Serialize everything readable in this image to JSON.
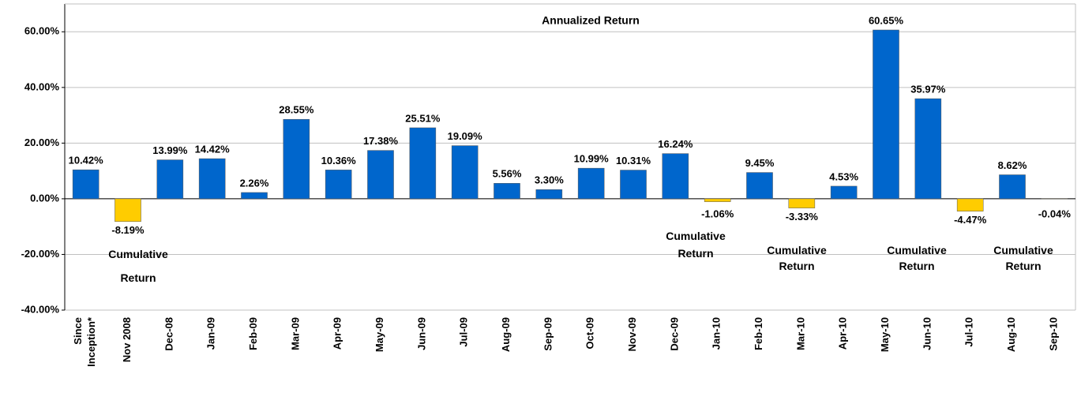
{
  "chart_data": {
    "type": "bar",
    "title": "Annualized Return",
    "annotations": [
      "Cumulative Return",
      "Cumulative Return",
      "Cumulative Return",
      "Cumulative Return",
      "Cumulative Return"
    ],
    "categories": [
      "Since\nInception*",
      "Nov 2008",
      "Dec-08",
      "Jan-09",
      "Feb-09",
      "Mar-09",
      "Apr-09",
      "May-09",
      "Jun-09",
      "Jul-09",
      "Aug-09",
      "Sep-09",
      "Oct-09",
      "Nov-09",
      "Dec-09",
      "Jan-10",
      "Feb-10",
      "Mar-10",
      "Apr-10",
      "May-10",
      "Jun-10",
      "Jul-10",
      "Aug-10",
      "Sep-10"
    ],
    "values": [
      10.42,
      -8.19,
      13.99,
      14.42,
      2.26,
      28.55,
      10.36,
      17.38,
      25.51,
      19.09,
      5.56,
      3.3,
      10.99,
      10.31,
      16.24,
      -1.06,
      9.45,
      -3.33,
      4.53,
      60.65,
      35.97,
      -4.47,
      8.62,
      -0.04
    ],
    "value_labels": [
      "10.42%",
      "-8.19%",
      "13.99%",
      "14.42%",
      "2.26%",
      "28.55%",
      "10.36%",
      "17.38%",
      "25.51%",
      "19.09%",
      "5.56%",
      "3.30%",
      "10.99%",
      "10.31%",
      "16.24%",
      "-1.06%",
      "9.45%",
      "-3.33%",
      "4.53%",
      "60.65%",
      "35.97%",
      "-4.47%",
      "8.62%",
      "-0.04%"
    ],
    "color": "#0066cc",
    "negative_color": "#ffcc00",
    "ylim": [
      -40,
      70
    ],
    "yticks": [
      {
        "value": -40,
        "label": "-40.00%"
      },
      {
        "value": -20,
        "label": "-20.00%"
      },
      {
        "value": 0,
        "label": "0.00%"
      },
      {
        "value": 20,
        "label": "20.00%"
      },
      {
        "value": 40,
        "label": "40.00%"
      },
      {
        "value": 60,
        "label": "60.00%"
      }
    ],
    "grid": true
  }
}
